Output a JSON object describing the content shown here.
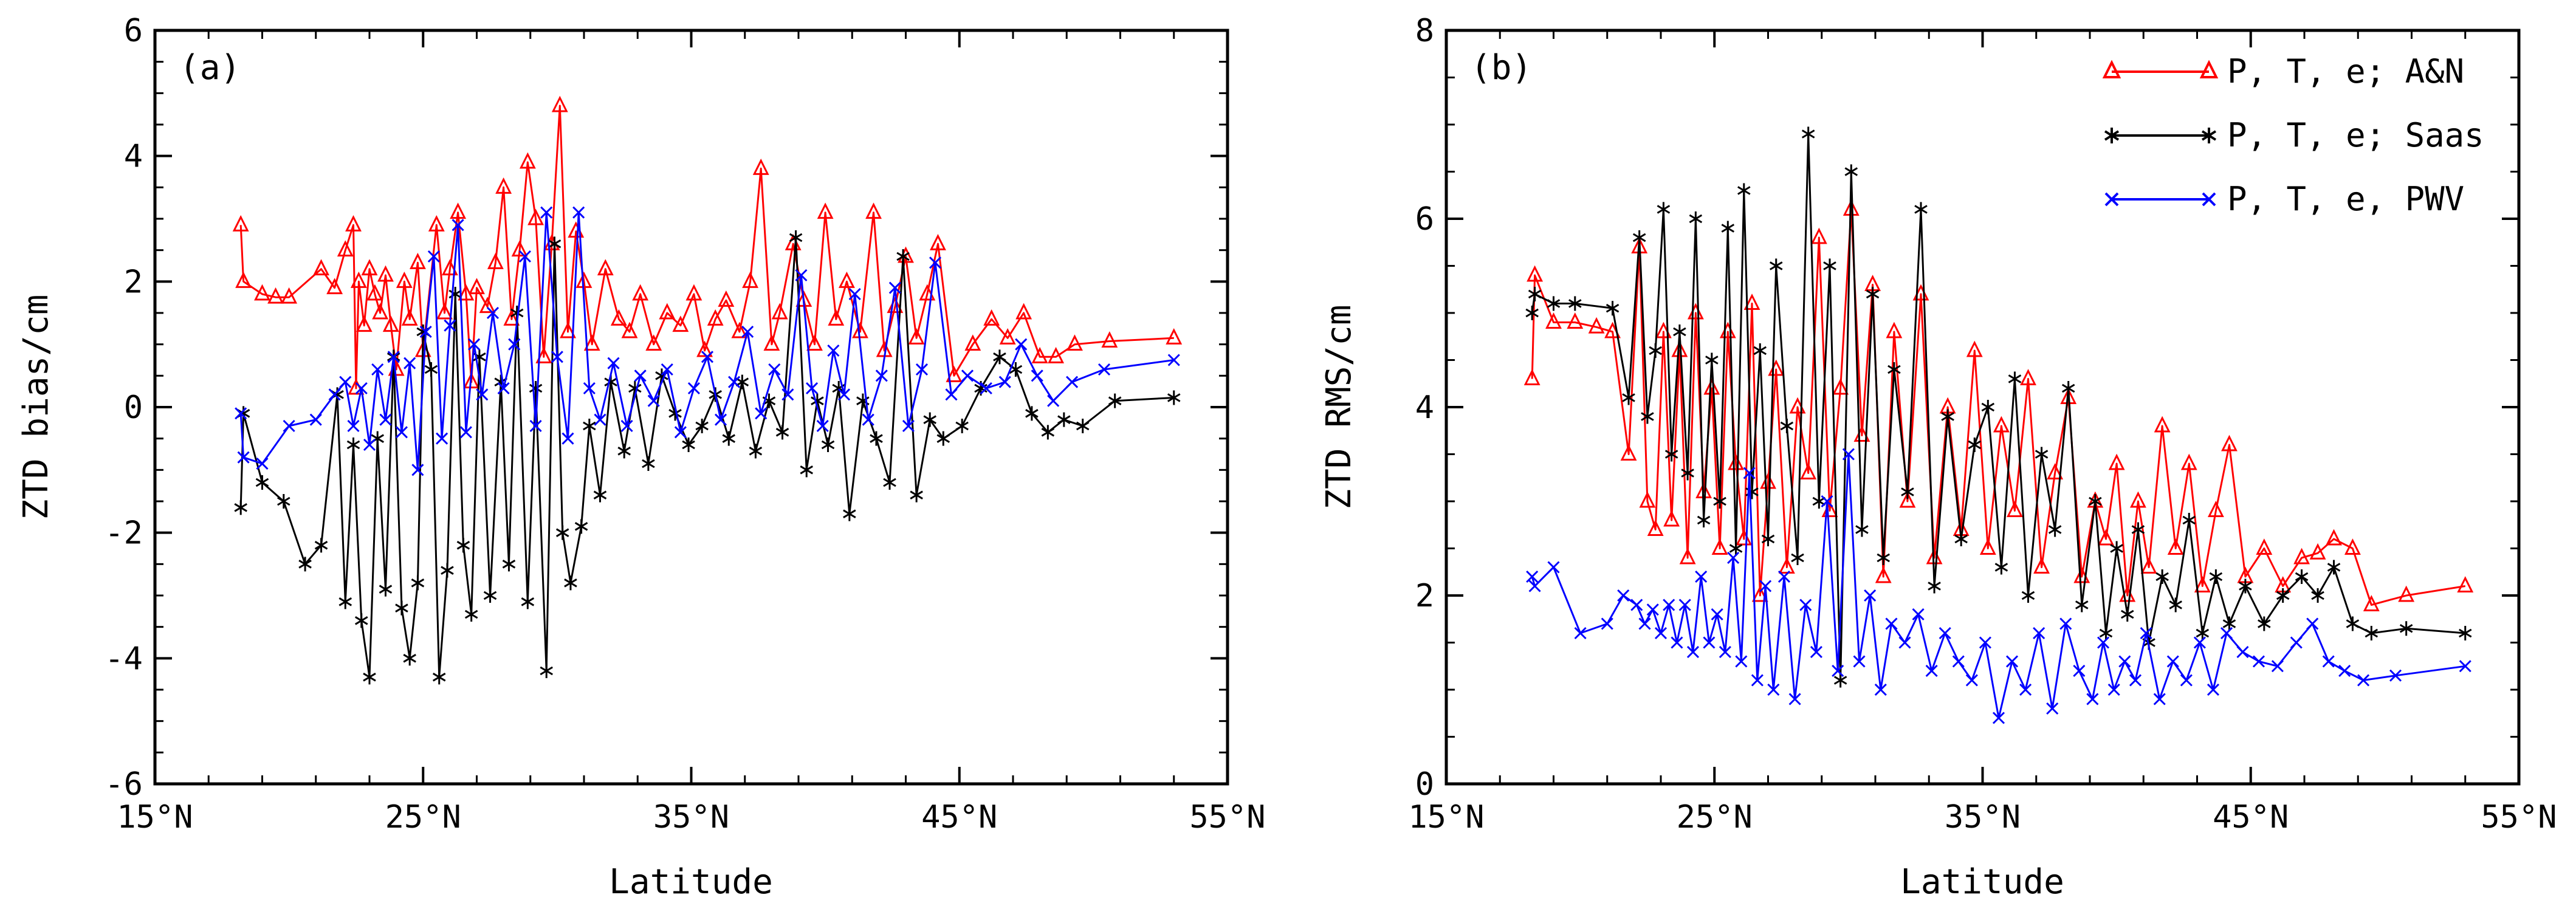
{
  "chart_data": [
    {
      "type": "line",
      "panel_label": "(a)",
      "xlabel": "Latitude",
      "ylabel": "ZTD bias/cm",
      "xlim": [
        15,
        55
      ],
      "ylim": [
        -6,
        6
      ],
      "xticks": [
        15,
        25,
        35,
        45,
        55
      ],
      "xtick_labels": [
        "15°N",
        "25°N",
        "35°N",
        "45°N",
        "55°N"
      ],
      "yticks": [
        -6,
        -4,
        -2,
        0,
        2,
        4,
        6
      ],
      "ytick_labels": [
        "-6",
        "-4",
        "-2",
        "0",
        "2",
        "4",
        "6"
      ],
      "grid": false,
      "series": [
        {
          "name": "P, T, e; A&N",
          "color": "#ff0000",
          "marker": "triangle",
          "x": [
            18.2,
            18.3,
            19.0,
            19.5,
            20.0,
            21.2,
            21.7,
            22.1,
            22.4,
            22.5,
            22.6,
            22.8,
            23.0,
            23.2,
            23.4,
            23.6,
            23.8,
            24.0,
            24.3,
            24.5,
            24.8,
            25.0,
            25.5,
            25.8,
            26.0,
            26.3,
            26.6,
            26.8,
            27.0,
            27.4,
            27.7,
            28.0,
            28.3,
            28.6,
            28.9,
            29.2,
            29.5,
            29.8,
            30.1,
            30.4,
            30.7,
            31.0,
            31.3,
            31.8,
            32.3,
            32.7,
            33.1,
            33.6,
            34.1,
            34.6,
            35.1,
            35.5,
            35.9,
            36.3,
            36.8,
            37.2,
            37.6,
            38.0,
            38.3,
            38.8,
            39.2,
            39.6,
            40.0,
            40.4,
            40.8,
            41.3,
            41.8,
            42.2,
            42.6,
            43.0,
            43.4,
            43.8,
            44.2,
            44.8,
            45.5,
            46.2,
            46.8,
            47.4,
            48.0,
            48.6,
            49.3,
            50.6,
            53.0
          ],
          "y": [
            2.9,
            2.0,
            1.8,
            1.75,
            1.75,
            2.2,
            1.9,
            2.5,
            2.9,
            0.3,
            2.0,
            1.3,
            2.2,
            1.8,
            1.5,
            2.1,
            1.3,
            0.6,
            2.0,
            1.4,
            2.3,
            0.9,
            2.9,
            1.5,
            2.2,
            3.1,
            1.8,
            0.4,
            1.9,
            1.6,
            2.3,
            3.5,
            1.4,
            2.5,
            3.9,
            3.0,
            0.8,
            2.6,
            4.8,
            1.2,
            2.8,
            2.0,
            1.0,
            2.2,
            1.4,
            1.2,
            1.8,
            1.0,
            1.5,
            1.3,
            1.8,
            0.9,
            1.4,
            1.7,
            1.2,
            2.0,
            3.8,
            1.0,
            1.5,
            2.6,
            1.7,
            1.0,
            3.1,
            1.4,
            2.0,
            1.2,
            3.1,
            0.9,
            1.6,
            2.4,
            1.1,
            1.8,
            2.6,
            0.5,
            1.0,
            1.4,
            1.1,
            1.5,
            0.8,
            0.8,
            1.0,
            1.05,
            1.1
          ]
        },
        {
          "name": "P, T, e; Saas",
          "color": "#000000",
          "marker": "asterisk",
          "x": [
            18.2,
            18.3,
            19.0,
            19.8,
            20.6,
            21.2,
            21.8,
            22.1,
            22.4,
            22.7,
            23.0,
            23.3,
            23.6,
            23.9,
            24.2,
            24.5,
            24.8,
            25.0,
            25.3,
            25.6,
            25.9,
            26.2,
            26.5,
            26.8,
            27.1,
            27.5,
            27.9,
            28.2,
            28.5,
            28.9,
            29.2,
            29.6,
            29.9,
            30.2,
            30.5,
            30.9,
            31.2,
            31.6,
            32.0,
            32.5,
            32.9,
            33.4,
            33.9,
            34.4,
            34.9,
            35.4,
            35.9,
            36.4,
            36.9,
            37.4,
            37.9,
            38.4,
            38.9,
            39.3,
            39.7,
            40.1,
            40.5,
            40.9,
            41.4,
            41.9,
            42.4,
            42.9,
            43.4,
            43.9,
            44.4,
            45.1,
            45.8,
            46.5,
            47.1,
            47.7,
            48.3,
            48.9,
            49.6,
            50.8,
            53.0
          ],
          "y": [
            -1.6,
            -0.1,
            -1.2,
            -1.5,
            -2.5,
            -2.2,
            0.2,
            -3.1,
            -0.6,
            -3.4,
            -4.3,
            -0.5,
            -2.9,
            0.8,
            -3.2,
            -4.0,
            -2.8,
            1.2,
            0.6,
            -4.3,
            -2.6,
            1.8,
            -2.2,
            -3.3,
            0.8,
            -3.0,
            0.4,
            -2.5,
            1.5,
            -3.1,
            0.3,
            -4.2,
            2.6,
            -2.0,
            -2.8,
            -1.9,
            -0.3,
            -1.4,
            0.4,
            -0.7,
            0.3,
            -0.9,
            0.5,
            -0.1,
            -0.6,
            -0.3,
            0.2,
            -0.5,
            0.4,
            -0.7,
            0.1,
            -0.4,
            2.7,
            -1.0,
            0.1,
            -0.6,
            0.3,
            -1.7,
            0.1,
            -0.5,
            -1.2,
            2.4,
            -1.4,
            -0.2,
            -0.5,
            -0.3,
            0.3,
            0.8,
            0.6,
            -0.1,
            -0.4,
            -0.2,
            -0.3,
            0.1,
            0.15
          ]
        },
        {
          "name": "P, T, e, PWV",
          "color": "#0000ff",
          "marker": "x",
          "x": [
            18.2,
            18.3,
            19.0,
            20.0,
            21.0,
            21.7,
            22.1,
            22.4,
            22.7,
            23.0,
            23.3,
            23.6,
            23.9,
            24.2,
            24.5,
            24.8,
            25.1,
            25.4,
            25.7,
            26.0,
            26.3,
            26.6,
            26.9,
            27.2,
            27.6,
            28.0,
            28.4,
            28.8,
            29.2,
            29.6,
            30.0,
            30.4,
            30.8,
            31.2,
            31.6,
            32.1,
            32.6,
            33.1,
            33.6,
            34.1,
            34.6,
            35.1,
            35.6,
            36.1,
            36.6,
            37.1,
            37.6,
            38.1,
            38.6,
            39.1,
            39.5,
            39.9,
            40.3,
            40.7,
            41.1,
            41.6,
            42.1,
            42.6,
            43.1,
            43.6,
            44.1,
            44.7,
            45.3,
            46.0,
            46.7,
            47.3,
            47.9,
            48.5,
            49.2,
            50.4,
            53.0
          ],
          "y": [
            -0.1,
            -0.8,
            -0.9,
            -0.3,
            -0.2,
            0.2,
            0.4,
            -0.3,
            0.3,
            -0.6,
            0.6,
            -0.2,
            0.8,
            -0.4,
            0.7,
            -1.0,
            1.2,
            2.4,
            -0.5,
            1.3,
            2.9,
            -0.4,
            1.0,
            0.2,
            1.5,
            0.3,
            1.0,
            2.4,
            -0.3,
            3.1,
            0.8,
            -0.5,
            3.1,
            0.3,
            -0.2,
            0.7,
            -0.3,
            0.5,
            0.1,
            0.6,
            -0.4,
            0.3,
            0.8,
            -0.2,
            0.4,
            1.2,
            -0.1,
            0.6,
            0.2,
            2.1,
            0.3,
            -0.3,
            0.9,
            0.2,
            1.8,
            -0.2,
            0.5,
            1.9,
            -0.3,
            0.6,
            2.3,
            0.2,
            0.5,
            0.3,
            0.4,
            1.0,
            0.5,
            0.1,
            0.4,
            0.6,
            0.75
          ]
        }
      ]
    },
    {
      "type": "line",
      "panel_label": "(b)",
      "xlabel": "Latitude",
      "ylabel": "ZTD RMS/cm",
      "xlim": [
        15,
        55
      ],
      "ylim": [
        0,
        8
      ],
      "xticks": [
        15,
        25,
        35,
        45,
        55
      ],
      "xtick_labels": [
        "15°N",
        "25°N",
        "35°N",
        "45°N",
        "55°N"
      ],
      "yticks": [
        0,
        2,
        4,
        6,
        8
      ],
      "ytick_labels": [
        "0",
        "2",
        "4",
        "6",
        "8"
      ],
      "grid": false,
      "legend_position": "top-right",
      "series": [
        {
          "name": "P, T, e; A&N",
          "color": "#ff0000",
          "marker": "triangle",
          "x": [
            18.2,
            18.3,
            19.0,
            19.8,
            20.6,
            21.2,
            21.8,
            22.2,
            22.5,
            22.8,
            23.1,
            23.4,
            23.7,
            24.0,
            24.3,
            24.6,
            24.9,
            25.2,
            25.5,
            25.8,
            26.1,
            26.4,
            26.7,
            27.0,
            27.3,
            27.7,
            28.1,
            28.5,
            28.9,
            29.3,
            29.7,
            30.1,
            30.5,
            30.9,
            31.3,
            31.7,
            32.2,
            32.7,
            33.2,
            33.7,
            34.2,
            34.7,
            35.2,
            35.7,
            36.2,
            36.7,
            37.2,
            37.7,
            38.2,
            38.7,
            39.2,
            39.6,
            40.0,
            40.4,
            40.8,
            41.2,
            41.7,
            42.2,
            42.7,
            43.2,
            43.7,
            44.2,
            44.8,
            45.5,
            46.2,
            46.9,
            47.5,
            48.1,
            48.8,
            49.5,
            50.8,
            53.0
          ],
          "y": [
            4.3,
            5.4,
            4.9,
            4.9,
            4.85,
            4.8,
            3.5,
            5.7,
            3.0,
            2.7,
            4.8,
            2.8,
            4.6,
            2.4,
            5.0,
            3.1,
            4.2,
            2.5,
            4.8,
            3.4,
            2.6,
            5.1,
            2.0,
            3.2,
            4.4,
            2.3,
            4.0,
            3.3,
            5.8,
            2.9,
            4.2,
            6.1,
            3.7,
            5.3,
            2.2,
            4.8,
            3.0,
            5.2,
            2.4,
            4.0,
            2.7,
            4.6,
            2.5,
            3.8,
            2.9,
            4.3,
            2.3,
            3.3,
            4.1,
            2.2,
            3.0,
            2.6,
            3.4,
            2.0,
            3.0,
            2.3,
            3.8,
            2.5,
            3.4,
            2.1,
            2.9,
            3.6,
            2.2,
            2.5,
            2.1,
            2.4,
            2.45,
            2.6,
            2.5,
            1.9,
            2.0,
            2.1
          ]
        },
        {
          "name": "P, T, e; Saas",
          "color": "#000000",
          "marker": "asterisk",
          "x": [
            18.2,
            18.3,
            19.0,
            19.8,
            21.2,
            21.8,
            22.2,
            22.5,
            22.8,
            23.1,
            23.4,
            23.7,
            24.0,
            24.3,
            24.6,
            24.9,
            25.2,
            25.5,
            25.8,
            26.1,
            26.4,
            26.7,
            27.0,
            27.3,
            27.7,
            28.1,
            28.5,
            28.9,
            29.3,
            29.7,
            30.1,
            30.5,
            30.9,
            31.3,
            31.7,
            32.2,
            32.7,
            33.2,
            33.7,
            34.2,
            34.7,
            35.2,
            35.7,
            36.2,
            36.7,
            37.2,
            37.7,
            38.2,
            38.7,
            39.2,
            39.6,
            40.0,
            40.4,
            40.8,
            41.2,
            41.7,
            42.2,
            42.7,
            43.2,
            43.7,
            44.2,
            44.8,
            45.5,
            46.2,
            46.9,
            47.5,
            48.1,
            48.8,
            49.5,
            50.8,
            53.0
          ],
          "y": [
            5.0,
            5.2,
            5.1,
            5.1,
            5.05,
            4.1,
            5.8,
            3.9,
            4.6,
            6.1,
            3.5,
            4.8,
            3.3,
            6.0,
            2.8,
            4.5,
            3.0,
            5.9,
            2.5,
            6.3,
            3.1,
            4.6,
            2.6,
            5.5,
            3.8,
            2.4,
            6.9,
            3.0,
            5.5,
            1.1,
            6.5,
            2.7,
            5.2,
            2.4,
            4.4,
            3.1,
            6.1,
            2.1,
            3.9,
            2.6,
            3.6,
            4.0,
            2.3,
            4.3,
            2.0,
            3.5,
            2.7,
            4.2,
            1.9,
            3.0,
            1.6,
            2.5,
            1.8,
            2.7,
            1.5,
            2.2,
            1.9,
            2.8,
            1.6,
            2.2,
            1.7,
            2.1,
            1.7,
            2.0,
            2.2,
            2.0,
            2.3,
            1.7,
            1.6,
            1.65,
            1.6
          ]
        },
        {
          "name": "P, T, e, PWV",
          "color": "#0000ff",
          "marker": "x",
          "x": [
            18.2,
            18.3,
            19.0,
            20.0,
            21.0,
            21.6,
            22.1,
            22.4,
            22.7,
            23.0,
            23.3,
            23.6,
            23.9,
            24.2,
            24.5,
            24.8,
            25.1,
            25.4,
            25.7,
            26.0,
            26.3,
            26.6,
            26.9,
            27.2,
            27.6,
            28.0,
            28.4,
            28.8,
            29.2,
            29.6,
            30.0,
            30.4,
            30.8,
            31.2,
            31.6,
            32.1,
            32.6,
            33.1,
            33.6,
            34.1,
            34.6,
            35.1,
            35.6,
            36.1,
            36.6,
            37.1,
            37.6,
            38.1,
            38.6,
            39.1,
            39.5,
            39.9,
            40.3,
            40.7,
            41.1,
            41.6,
            42.1,
            42.6,
            43.1,
            43.6,
            44.1,
            44.7,
            45.3,
            46.0,
            46.7,
            47.3,
            47.9,
            48.5,
            49.2,
            50.4,
            53.0
          ],
          "y": [
            2.2,
            2.1,
            2.3,
            1.6,
            1.7,
            2.0,
            1.9,
            1.7,
            1.85,
            1.6,
            1.9,
            1.5,
            1.9,
            1.4,
            2.2,
            1.5,
            1.8,
            1.4,
            2.4,
            1.3,
            3.3,
            1.1,
            2.1,
            1.0,
            2.2,
            0.9,
            1.9,
            1.4,
            3.0,
            1.2,
            3.5,
            1.3,
            2.0,
            1.0,
            1.7,
            1.5,
            1.8,
            1.2,
            1.6,
            1.3,
            1.1,
            1.5,
            0.7,
            1.3,
            1.0,
            1.6,
            0.8,
            1.7,
            1.2,
            0.9,
            1.5,
            1.0,
            1.3,
            1.1,
            1.6,
            0.9,
            1.3,
            1.1,
            1.5,
            1.0,
            1.6,
            1.4,
            1.3,
            1.25,
            1.5,
            1.7,
            1.3,
            1.2,
            1.1,
            1.15,
            1.25
          ]
        }
      ]
    }
  ]
}
